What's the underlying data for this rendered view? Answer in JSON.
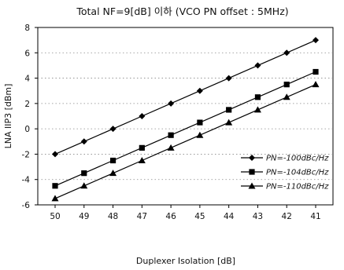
{
  "chart_data": {
    "type": "line",
    "title": "Total NF=9[dB] 이하 (VCO PN offset : 5MHz)",
    "xlabel": "Duplexer Isolation [dB]",
    "ylabel": "LNA IIP3 [dBm]",
    "categories": [
      "50",
      "49",
      "48",
      "47",
      "46",
      "45",
      "44",
      "43",
      "42",
      "41"
    ],
    "ylim": [
      -6,
      8
    ],
    "yticks": [
      -6,
      -4,
      -2,
      0,
      2,
      4,
      6,
      8
    ],
    "grid": "dotted horizontal",
    "legend_position": "bottom-right",
    "series": [
      {
        "name": "PN=-100dBc/Hz",
        "marker": "diamond",
        "values": [
          -2.0,
          -1.0,
          0.0,
          1.0,
          2.0,
          3.0,
          4.0,
          5.0,
          6.0,
          7.0
        ]
      },
      {
        "name": "PN=-104dBc/Hz",
        "marker": "square",
        "values": [
          -4.5,
          -3.5,
          -2.5,
          -1.5,
          -0.5,
          0.5,
          1.5,
          2.5,
          3.5,
          4.5
        ]
      },
      {
        "name": "PN=-110dBc/Hz",
        "marker": "triangle",
        "values": [
          -5.5,
          -4.5,
          -3.5,
          -2.5,
          -1.5,
          -0.5,
          0.5,
          1.5,
          2.5,
          3.5
        ]
      }
    ]
  }
}
